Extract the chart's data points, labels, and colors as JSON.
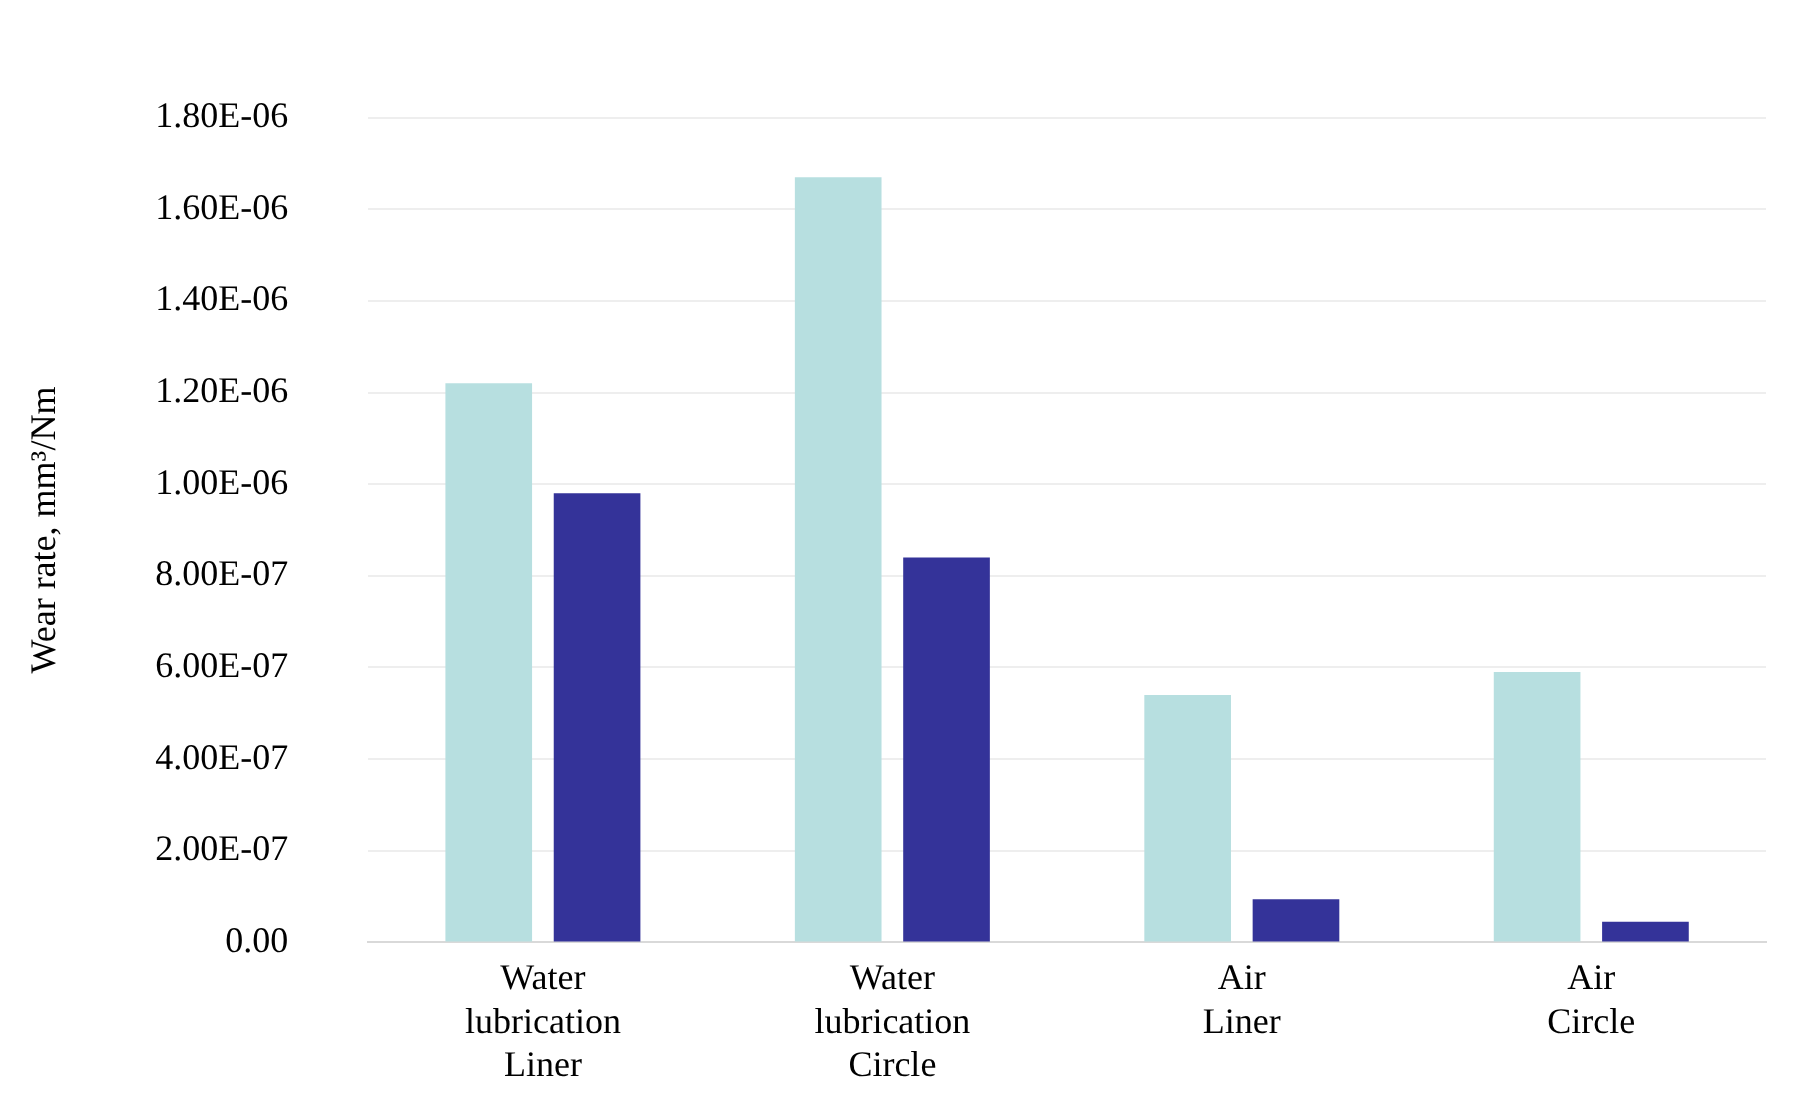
{
  "chart_data": {
    "type": "bar",
    "ylabel": "Wear rate, mm³/Nm",
    "categories": [
      "Water lubrication Liner",
      "Water lubrication Circle",
      "Air Liner",
      "Air Circle"
    ],
    "series": [
      {
        "color": "#b7dfe0",
        "values": [
          1.22e-06,
          1.67e-06,
          5.4e-07,
          5.9e-07
        ]
      },
      {
        "color": "#343399",
        "values": [
          9.8e-07,
          8.4e-07,
          9.4e-08,
          4.5e-08
        ]
      }
    ],
    "ylim": [
      0,
      1.8e-06
    ],
    "yticks": [
      {
        "value": 0,
        "label": "0.00"
      },
      {
        "value": 2e-07,
        "label": "2.00E-07"
      },
      {
        "value": 4e-07,
        "label": "4.00E-07"
      },
      {
        "value": 6e-07,
        "label": "6.00E-07"
      },
      {
        "value": 8e-07,
        "label": "8.00E-07"
      },
      {
        "value": 1e-06,
        "label": "1.00E-06"
      },
      {
        "value": 1.2e-06,
        "label": "1.20E-06"
      },
      {
        "value": 1.4e-06,
        "label": "1.40E-06"
      },
      {
        "value": 1.6e-06,
        "label": "1.60E-06"
      },
      {
        "value": 1.8e-06,
        "label": "1.80E-06"
      }
    ],
    "grid": "y",
    "legend": false
  }
}
